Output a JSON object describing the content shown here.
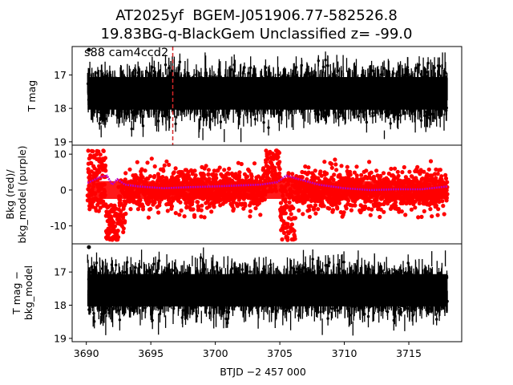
{
  "figure": {
    "title_line1": "AT2025yf  BGEM-J051906.77-582526.8",
    "title_line2": "19.83BG-q-BlackGem Unclassified z= -99.0"
  },
  "colors": {
    "points": "#000000",
    "bkg_points": "#ff0000",
    "bkg_model": "#bf00bf",
    "marker_line": "#d62728",
    "frame": "#000000"
  },
  "chart_data": [
    {
      "type": "scatter",
      "panel": "top",
      "title": "",
      "ylabel": "T mag",
      "xlabel": "",
      "annotation": "s88 cam4ccd2",
      "xlim": [
        3688.9,
        3719.1
      ],
      "ylim": [
        19.1,
        16.15
      ],
      "yticks": [
        17,
        18,
        19
      ],
      "y_inverted": true,
      "grid": false,
      "series": [
        {
          "style": "dense scatter with error bars",
          "x_range": [
            3690.1,
            3718.0
          ],
          "y_band_core": [
            16.9,
            18.2
          ],
          "y_band_envelope": [
            16.55,
            18.85
          ],
          "outlier": {
            "x": 3690.2,
            "y": 16.25
          }
        }
      ],
      "vertical_line": {
        "x": 3696.7,
        "style": "dashed",
        "color": "red"
      }
    },
    {
      "type": "scatter",
      "panel": "middle",
      "title": "",
      "ylabel_line1": "Bkg (red)/",
      "ylabel_line2": "bkg_model (purple)",
      "xlabel": "",
      "xlim": [
        3688.9,
        3719.1
      ],
      "ylim": [
        -15,
        12.5
      ],
      "yticks": [
        10,
        0,
        -10
      ],
      "grid": false,
      "series": [
        {
          "color": "red",
          "role": "background",
          "typical_band": [
            -4.5,
            4.5
          ],
          "features": [
            {
              "x": [
                3690.1,
                3691.5
              ],
              "y_range": [
                -6,
                11
              ]
            },
            {
              "x": [
                3691.5,
                3692.5
              ],
              "y_range": [
                -14,
                -4
              ]
            },
            {
              "x": [
                3692.5,
                3693.0
              ],
              "y_range": [
                -12,
                3
              ]
            },
            {
              "x": [
                3703.9,
                3705.0
              ],
              "y_range": [
                -1,
                11
              ]
            },
            {
              "x": [
                3705.0,
                3706.2
              ],
              "y_range": [
                -14,
                5
              ]
            }
          ]
        },
        {
          "color": "purple",
          "role": "bkg_model",
          "x": [
            3690.1,
            3691.0,
            3691.3,
            3691.6,
            3692.0,
            3692.4,
            3693.0,
            3694.0,
            3696.0,
            3698.0,
            3700.0,
            3702.0,
            3703.5,
            3704.8,
            3705.5,
            3706.0,
            3707.0,
            3708.0,
            3710.0,
            3712.0,
            3714.0,
            3716.0,
            3717.5,
            3718.0
          ],
          "y": [
            2.0,
            3.5,
            3.8,
            4.0,
            1.5,
            3.0,
            1.5,
            1.0,
            0.5,
            0.8,
            1.0,
            1.3,
            1.5,
            2.2,
            4.0,
            3.5,
            2.5,
            1.5,
            0.5,
            0.0,
            0.2,
            0.2,
            0.8,
            1.0
          ]
        }
      ]
    },
    {
      "type": "scatter",
      "panel": "bottom",
      "title": "",
      "ylabel_line1": "T mag −",
      "ylabel_line2": "bkg_model",
      "xlabel": "BTJD −2 457 000",
      "xlim": [
        3688.9,
        3719.1
      ],
      "xticks": [
        3690,
        3695,
        3700,
        3705,
        3710,
        3715
      ],
      "ylim": [
        19.1,
        16.15
      ],
      "yticks": [
        17,
        18,
        19
      ],
      "y_inverted": true,
      "grid": false,
      "series": [
        {
          "style": "dense scatter with error bars",
          "x_range": [
            3690.1,
            3718.0
          ],
          "y_band_core": [
            16.9,
            18.2
          ],
          "y_band_envelope": [
            16.55,
            18.9
          ],
          "outlier": {
            "x": 3690.2,
            "y": 16.25
          }
        }
      ]
    }
  ]
}
